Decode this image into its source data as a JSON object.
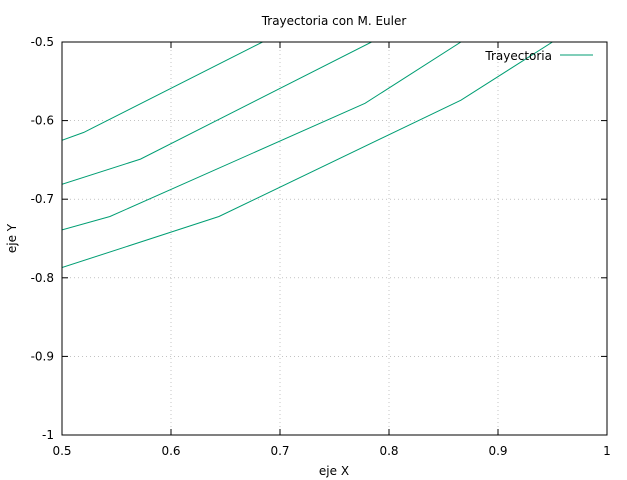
{
  "chart_data": {
    "type": "line",
    "title": "Trayectoria con M. Euler",
    "xlabel": "eje X",
    "ylabel": "eje Y",
    "xlim": [
      0.5,
      1
    ],
    "ylim": [
      -1,
      -0.5
    ],
    "grid": true,
    "legend_position": "top-right",
    "xticks": [
      0.5,
      0.6,
      0.7,
      0.8,
      0.9,
      1
    ],
    "xtick_labels": [
      "0.5",
      "0.6",
      "0.7",
      "0.8",
      "0.9",
      "1"
    ],
    "yticks": [
      -1,
      -0.9,
      -0.8,
      -0.7,
      -0.6,
      -0.5
    ],
    "ytick_labels": [
      "-1",
      "-0.9",
      "-0.8",
      "-0.7",
      "-0.6",
      "-0.5"
    ],
    "series_color": "#009e73",
    "legend_label": "Trayectoria",
    "series": [
      {
        "x": [
          0.5,
          0.52,
          0.684
        ],
        "y": [
          -0.625,
          -0.615,
          -0.5
        ]
      },
      {
        "x": [
          0.5,
          0.572,
          0.784
        ],
        "y": [
          -0.681,
          -0.649,
          -0.5
        ]
      },
      {
        "x": [
          0.5,
          0.544,
          0.778,
          0.866
        ],
        "y": [
          -0.739,
          -0.722,
          -0.578,
          -0.5
        ]
      },
      {
        "x": [
          0.5,
          0.644,
          0.866,
          0.95
        ],
        "y": [
          -0.787,
          -0.722,
          -0.574,
          -0.5
        ]
      }
    ]
  }
}
